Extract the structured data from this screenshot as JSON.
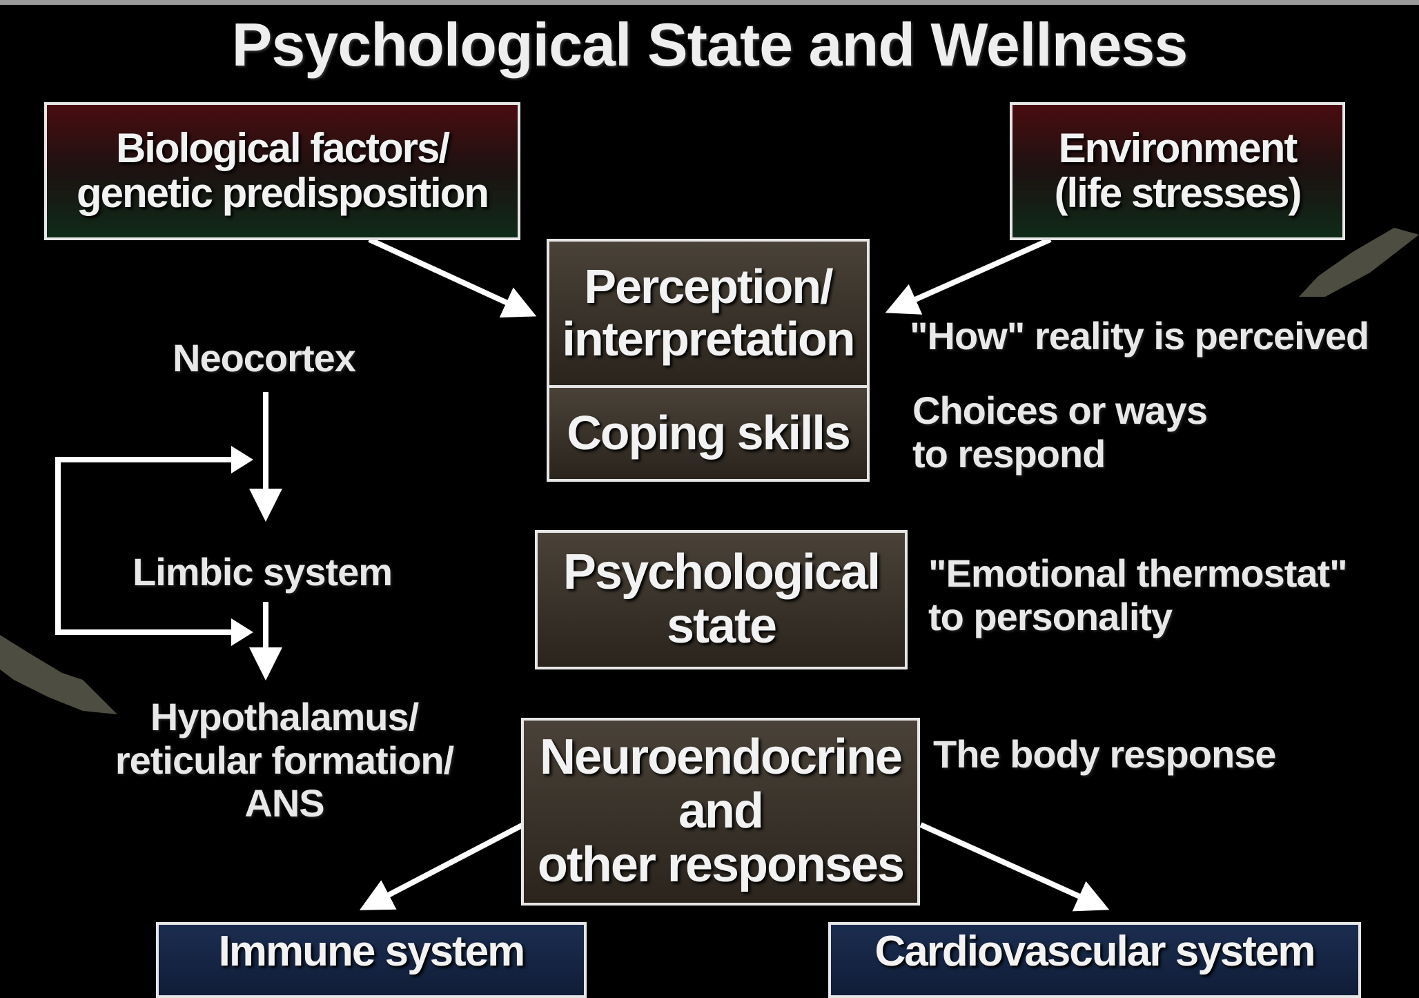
{
  "title": "Psychological State and Wellness",
  "boxes": {
    "biological": [
      "Biological factors/",
      "genetic predisposition"
    ],
    "environment": [
      "Environment",
      "(life stresses)"
    ],
    "perception": [
      "Perception/",
      "interpretation"
    ],
    "coping": [
      "Coping skills"
    ],
    "psych_state": [
      "Psychological",
      "state"
    ],
    "neuroendocrine": [
      "Neuroendocrine",
      "and",
      "other responses"
    ],
    "immune": [
      "Immune system"
    ],
    "cardiovascular": [
      "Cardiovascular system"
    ]
  },
  "annotations": {
    "perceived": [
      "\"How\" reality is perceived"
    ],
    "choices": [
      "Choices or ways",
      "to respond"
    ],
    "thermostat": [
      "\"Emotional thermostat\"",
      "to personality"
    ],
    "body": [
      "The body response"
    ]
  },
  "brain": {
    "neocortex": "Neocortex",
    "limbic": "Limbic system",
    "hypothalamus": [
      "Hypothalamus/",
      "reticular formation/",
      "ANS"
    ]
  },
  "colors": {
    "background": "#000000",
    "box_border": "#e6e6e6",
    "arrow": "#ffffff",
    "pointer_arrow": "#6b6b5a"
  }
}
